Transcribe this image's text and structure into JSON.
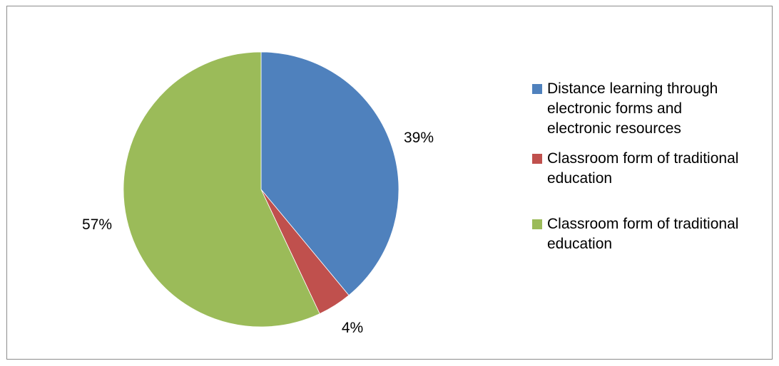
{
  "chart_data": {
    "type": "pie",
    "title": "",
    "slices": [
      {
        "name": "Distance learning through electronic forms and electronic resources",
        "value": 39,
        "label": "39%",
        "color": "#4f81bd"
      },
      {
        "name": "Classroom form of traditional education",
        "value": 4,
        "label": "4%",
        "color": "#c0504d"
      },
      {
        "name": "Classroom form of traditional education",
        "value": 57,
        "label": "57%",
        "color": "#9bbb59"
      }
    ],
    "legend_position": "right",
    "legend": [
      {
        "line1": "Distance learning through",
        "line2": "electronic forms and",
        "line3": "electronic resources",
        "color": "#4f81bd"
      },
      {
        "line1": "Classroom form of traditional",
        "line2": "education",
        "color": "#c0504d"
      },
      {
        "line1": "Classroom form of traditional",
        "line2": "education",
        "color": "#9bbb59"
      }
    ]
  }
}
